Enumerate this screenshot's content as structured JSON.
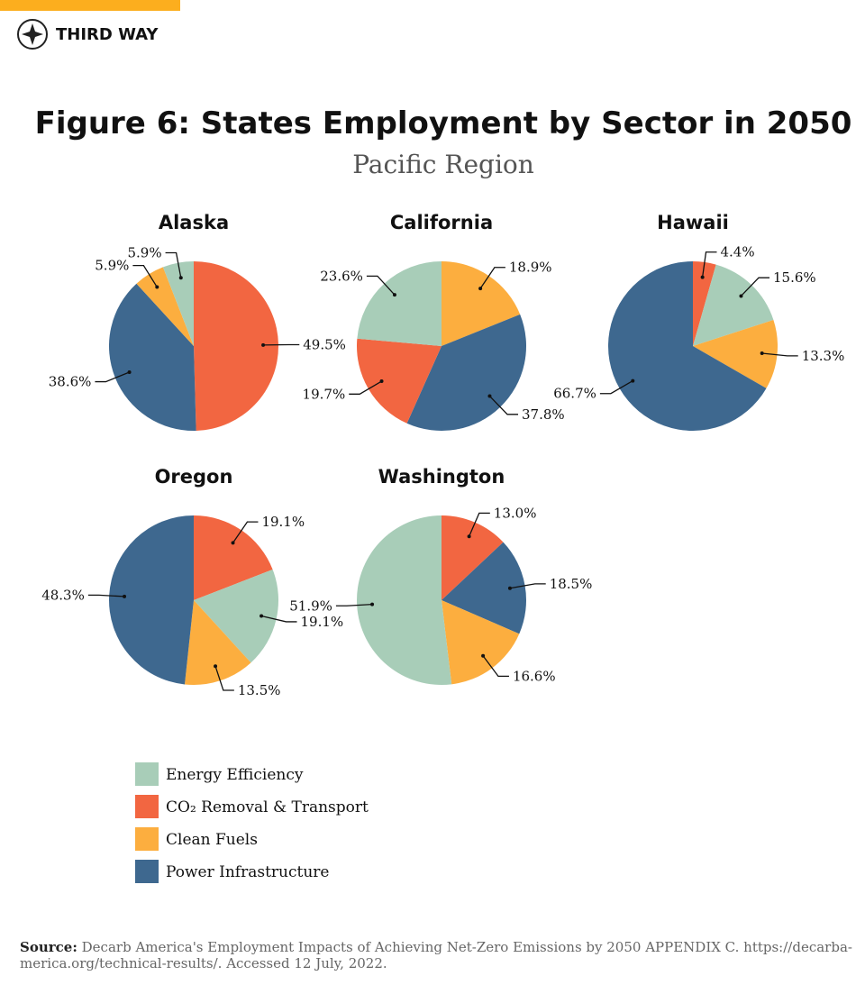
{
  "brand": "THIRD WAY",
  "title": "Figure 6: States Employment by Sector in 2050",
  "subtitle": "Pacific Region",
  "legend": {
    "categories": [
      "Energy Efficiency",
      "CO₂ Removal & Transport",
      "Clean Fuels",
      "Power Infrastructure"
    ],
    "colors": [
      "#a8cdb8",
      "#f26641",
      "#fcae3f",
      "#3e688f"
    ]
  },
  "chart_data": [
    {
      "type": "pie",
      "title": "Alaska",
      "values": [
        5.9,
        49.5,
        5.9,
        38.6
      ],
      "value_labels": [
        "5.9%",
        "49.5%",
        "5.9%",
        "38.6%"
      ]
    },
    {
      "type": "pie",
      "title": "California",
      "values": [
        23.6,
        19.7,
        18.9,
        37.8
      ],
      "value_labels": [
        "23.6%",
        "19.7%",
        "18.9%",
        "37.8%"
      ]
    },
    {
      "type": "pie",
      "title": "Hawaii",
      "values": [
        15.6,
        4.4,
        13.3,
        66.7
      ],
      "value_labels": [
        "15.6%",
        "4.4%",
        "13.3%",
        "66.7%"
      ]
    },
    {
      "type": "pie",
      "title": "Oregon",
      "values": [
        19.1,
        19.1,
        13.5,
        48.3
      ],
      "value_labels": [
        "19.1%",
        "19.1%",
        "13.5%",
        "48.3%"
      ]
    },
    {
      "type": "pie",
      "title": "Washington",
      "values": [
        51.9,
        13.0,
        16.6,
        18.5
      ],
      "value_labels": [
        "51.9%",
        "13.0%",
        "16.6%",
        "18.5%"
      ]
    }
  ],
  "source": {
    "label": "Source:",
    "lines": [
      "Decarb America's Employment Impacts of Achieving Net-Zero Emissions by 2050 APPENDIX C. https://decarba-",
      "merica.org/technical-results/. Accessed 12 July, 2022."
    ]
  }
}
